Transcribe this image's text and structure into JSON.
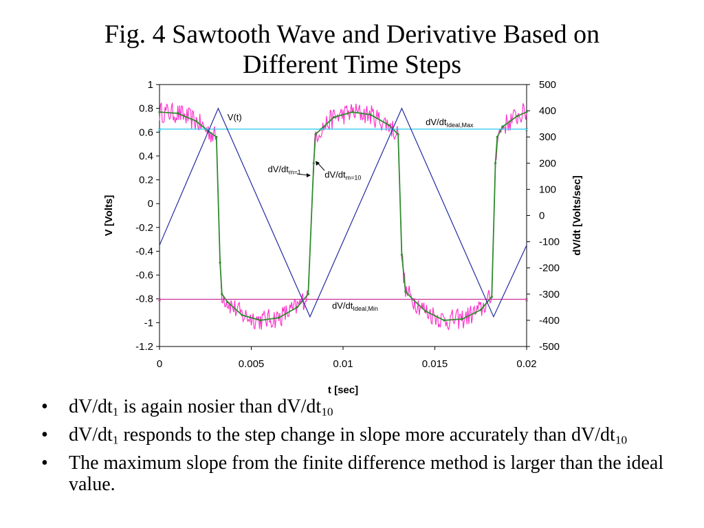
{
  "slide": {
    "title_lines": [
      "Fig. 4 Sawtooth Wave and Derivative Based on",
      "Different Time Steps"
    ],
    "bullets": [
      [
        {
          "t": "dV/dt"
        },
        {
          "sub": "1"
        },
        {
          "t": " is again nosier than dV/dt"
        },
        {
          "sub": "10"
        }
      ],
      [
        {
          "t": "dV/dt"
        },
        {
          "sub": "1"
        },
        {
          "t": " responds to the step change in slope more accurately than dV/dt"
        },
        {
          "sub": "10"
        }
      ],
      [
        {
          "t": "The maximum slope from the finite difference method is larger than the ideal value."
        }
      ]
    ]
  },
  "chart_data": {
    "type": "line",
    "xlabel": "t [sec]",
    "ylabel": "V [Volts]",
    "y2label": "dV/dt [Volts/sec]",
    "xlim": [
      0,
      0.02
    ],
    "ylim": [
      -1.2,
      1
    ],
    "y2lim": [
      -500,
      500
    ],
    "x_ticks": [
      "0",
      "0.005",
      "0.01",
      "0.015",
      "0.02"
    ],
    "y_ticks": [
      "1",
      "0.8",
      "0.6",
      "0.4",
      "0.2",
      "0",
      "-0.2",
      "-0.4",
      "-0.6",
      "-0.8",
      "-1",
      "-1.2"
    ],
    "y2_ticks": [
      "500",
      "400",
      "300",
      "200",
      "100",
      "0",
      "-100",
      "-200",
      "-300",
      "-400",
      "-500"
    ],
    "grid": false,
    "colors": {
      "v": "#1f2aa0",
      "m1": "#ff33cc",
      "m10": "#2e8b2e",
      "ideal_max": "#33ccee",
      "ideal_min": "#cc3399"
    },
    "series": [
      {
        "name": "V(t)",
        "axis": "left",
        "x": [
          0,
          0.0032,
          0.0082,
          0.0132,
          0.0182,
          0.02
        ],
        "y": [
          -0.35,
          0.8,
          -0.95,
          0.8,
          -0.95,
          -0.35
        ]
      },
      {
        "name": "dV/dt_Ideal,Max",
        "axis": "right",
        "x": [
          0,
          0.02
        ],
        "y": [
          330,
          330
        ]
      },
      {
        "name": "dV/dt_Ideal,Min",
        "axis": "right",
        "x": [
          0,
          0.02
        ],
        "y": [
          -320,
          -320
        ]
      },
      {
        "name": "dV/dt_m=10",
        "axis": "right",
        "x": [
          0,
          0.001,
          0.002,
          0.0027,
          0.0031,
          0.0033,
          0.0034,
          0.0037,
          0.0045,
          0.0055,
          0.0065,
          0.0075,
          0.0081,
          0.0084,
          0.0085,
          0.0088,
          0.0095,
          0.0105,
          0.0115,
          0.0125,
          0.013,
          0.0132,
          0.0134,
          0.0138,
          0.0145,
          0.0155,
          0.0165,
          0.0175,
          0.0181,
          0.0183,
          0.0184,
          0.0187,
          0.0195,
          0.02
        ],
        "y": [
          395,
          390,
          360,
          320,
          300,
          -180,
          -300,
          -330,
          -380,
          -400,
          -390,
          -350,
          -300,
          200,
          310,
          330,
          375,
          395,
          385,
          345,
          310,
          -150,
          -290,
          -320,
          -365,
          -400,
          -395,
          -360,
          -310,
          200,
          300,
          340,
          380,
          395
        ]
      },
      {
        "name": "dV/dt_m=1",
        "axis": "right",
        "x": [
          0,
          0.001,
          0.002,
          0.0027,
          0.0031,
          0.0033,
          0.0034,
          0.0037,
          0.0045,
          0.0055,
          0.0065,
          0.0075,
          0.0081,
          0.0084,
          0.0085,
          0.0088,
          0.0095,
          0.0105,
          0.0115,
          0.0125,
          0.013,
          0.0132,
          0.0134,
          0.0138,
          0.0145,
          0.0155,
          0.0165,
          0.0175,
          0.0181,
          0.0183,
          0.0184,
          0.0187,
          0.0195,
          0.02
        ],
        "y": [
          395,
          390,
          360,
          320,
          300,
          -180,
          -300,
          -330,
          -380,
          -400,
          -390,
          -350,
          -300,
          200,
          310,
          330,
          375,
          395,
          385,
          345,
          310,
          -150,
          -290,
          -320,
          -365,
          -400,
          -395,
          -360,
          -310,
          200,
          300,
          340,
          380,
          395
        ],
        "noise_amplitude": 40
      }
    ],
    "annotations": [
      {
        "text": "V(t)",
        "x": 0.0037,
        "y": 0.7,
        "axis": "left"
      },
      {
        "text": "dV/dt",
        "sub": "Ideal,Max",
        "x": 0.0145,
        "y": 345,
        "axis": "right"
      },
      {
        "text": "dV/dt",
        "sub": "Ideal,Min",
        "x": 0.0094,
        "y": -355,
        "axis": "right"
      },
      {
        "text": "dV/dt",
        "sub": "m=1",
        "x": 0.0059,
        "y": 165,
        "axis": "right"
      },
      {
        "text": "dV/dt",
        "sub": "m=10",
        "x": 0.009,
        "y": 145,
        "axis": "right"
      }
    ]
  }
}
